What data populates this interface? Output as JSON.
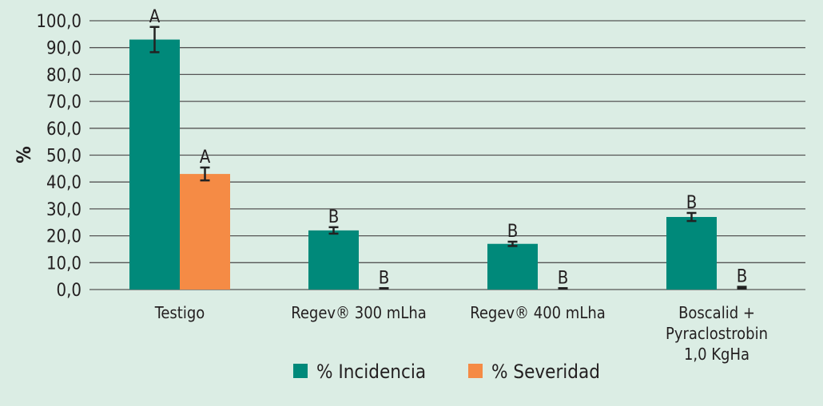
{
  "chart_data": {
    "type": "bar",
    "title": "",
    "xlabel": "",
    "ylabel": "%",
    "ylim": [
      0,
      100
    ],
    "yticks": [
      "0,0",
      "10,0",
      "20,0",
      "30,0",
      "40,0",
      "50,0",
      "60,0",
      "70,0",
      "80,0",
      "90,0",
      "100,0"
    ],
    "grid": true,
    "legend_position": "bottom",
    "categories": [
      [
        "Testigo"
      ],
      [
        "Regev® 300 mLha"
      ],
      [
        "Regev® 400 mLha"
      ],
      [
        "Boscalid +",
        "Pyraclostrobin",
        "1,0 KgHa"
      ]
    ],
    "series": [
      {
        "name": "% Incidencia",
        "color": "#00897a",
        "values": [
          93.0,
          22.0,
          17.0,
          27.0
        ],
        "errors": [
          4.7,
          1.2,
          0.8,
          1.5
        ],
        "letters": [
          "A",
          "B",
          "B",
          "B"
        ]
      },
      {
        "name": "% Severidad",
        "color": "#f58b45",
        "values": [
          43.0,
          0.3,
          0.3,
          0.8
        ],
        "errors": [
          2.4,
          0.2,
          0.2,
          0.3
        ],
        "letters": [
          "A",
          "B",
          "B",
          "B"
        ]
      }
    ]
  }
}
